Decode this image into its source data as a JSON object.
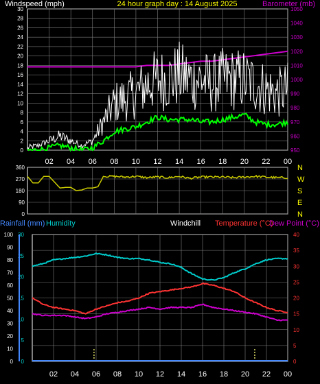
{
  "header": {
    "left": "Windspeed (mph)",
    "center": "24 hour graph day : 14 August 2025",
    "right": "Barometer (mb)"
  },
  "x_ticks": [
    "02",
    "04",
    "06",
    "08",
    "10",
    "12",
    "14",
    "16",
    "18",
    "20",
    "22",
    "00"
  ],
  "colors": {
    "background": "#000000",
    "grid": "#808080",
    "axis": "#ffffff",
    "wind_gust": "#ffffff",
    "wind_avg": "#00ff00",
    "barometer": "#cc00cc",
    "direction": "#cccc00",
    "rain_axis": "#4488ff",
    "humidity": "#00cccc",
    "temperature": "#ff3333",
    "dewpoint": "#cc00cc",
    "dir_labels": "#ffff00",
    "tick_marks": "#dddd66"
  },
  "chart_data": [
    {
      "type": "line",
      "panel": "wind",
      "title": "24 hour graph day : 14 August 2025",
      "ylabel": "Windspeed (mph)",
      "y2label": "Barometer (mb)",
      "ylim": [
        0,
        30
      ],
      "y2lim": [
        950,
        1050
      ],
      "yticks": [
        0,
        2,
        4,
        6,
        8,
        10,
        12,
        14,
        16,
        18,
        20,
        22,
        24,
        26,
        28,
        30
      ],
      "y2ticks": [
        950,
        960,
        970,
        980,
        990,
        1000,
        1010,
        1020,
        1030,
        1040,
        1050
      ],
      "x_hours": [
        0,
        1,
        2,
        3,
        4,
        5,
        6,
        7,
        8,
        9,
        10,
        11,
        12,
        13,
        14,
        15,
        16,
        17,
        18,
        19,
        20,
        21,
        22,
        23,
        24
      ],
      "series": [
        {
          "key": "gust",
          "values": [
            0.5,
            1,
            2,
            3,
            2,
            1,
            2,
            6,
            10,
            11,
            12,
            14,
            15,
            15,
            16,
            15,
            15,
            14,
            15,
            15,
            15,
            14,
            13,
            12,
            13
          ]
        },
        {
          "key": "avg",
          "values": [
            0,
            0,
            0.5,
            1,
            0.5,
            0,
            0.5,
            2,
            4,
            4.5,
            5,
            6,
            7,
            6.5,
            6.5,
            6.5,
            6,
            6,
            6.5,
            7,
            7.5,
            6,
            5.5,
            5.5,
            6
          ]
        },
        {
          "key": "barometer",
          "axis": "y2",
          "values": [
            1009,
            1009,
            1009,
            1009,
            1009,
            1009,
            1009,
            1009,
            1009,
            1009,
            1009,
            1010,
            1010,
            1010,
            1011,
            1012,
            1013,
            1013,
            1014,
            1015,
            1016,
            1017,
            1018,
            1019,
            1020
          ]
        }
      ]
    },
    {
      "type": "line",
      "panel": "direction",
      "ylim": [
        0,
        360
      ],
      "yticks": [
        0,
        90,
        180,
        270,
        360
      ],
      "compass": [
        "N",
        "W",
        "S",
        "E",
        "N"
      ],
      "x_hours": [
        0,
        0.5,
        1,
        1.5,
        2,
        2.5,
        3,
        3.5,
        4,
        4.5,
        5,
        5.5,
        6,
        6.5,
        7,
        8,
        9,
        10,
        11,
        12,
        13,
        14,
        15,
        16,
        17,
        18,
        19,
        20,
        21,
        22,
        23,
        24
      ],
      "values": [
        290,
        240,
        240,
        290,
        290,
        245,
        200,
        205,
        205,
        180,
        185,
        200,
        200,
        210,
        290,
        290,
        285,
        290,
        280,
        285,
        280,
        290,
        275,
        285,
        285,
        285,
        280,
        285,
        290,
        285,
        280,
        280
      ]
    },
    {
      "type": "line",
      "panel": "climate",
      "labels": {
        "rain": "Rainfall (mm)",
        "humidity": "Humidity",
        "windchill": "Windchill",
        "temperature": "Temperature (°C)",
        "dewpoint": "Dew Point (°C)"
      },
      "ylim_humidity": [
        0,
        100
      ],
      "ylim_rain": [
        0,
        30
      ],
      "ylim_temp": [
        0,
        40
      ],
      "yticks_humidity": [
        0,
        10,
        20,
        30,
        40,
        50,
        60,
        70,
        80,
        90,
        100
      ],
      "yticks_rain": [
        0,
        5,
        10,
        15,
        20,
        25,
        30
      ],
      "yticks_temp": [
        0,
        5,
        10,
        15,
        20,
        25,
        30,
        35,
        40
      ],
      "x_hours": [
        0,
        1,
        2,
        3,
        4,
        5,
        6,
        7,
        8,
        9,
        10,
        11,
        12,
        13,
        14,
        15,
        16,
        17,
        18,
        19,
        20,
        21,
        22,
        23,
        24
      ],
      "series": [
        {
          "key": "humidity",
          "values": [
            75,
            77,
            80,
            81,
            82,
            83,
            85,
            84,
            82,
            81,
            81,
            80,
            78,
            77,
            74,
            69,
            65,
            64,
            66,
            70,
            73,
            77,
            80,
            81,
            81
          ]
        },
        {
          "key": "temperature",
          "values": [
            20,
            18,
            17,
            16.5,
            16,
            15,
            16.5,
            17.5,
            18.5,
            19,
            20,
            21.5,
            22,
            22.5,
            23,
            23.5,
            24.5,
            24,
            23,
            22,
            20,
            18.5,
            17,
            16,
            15.5
          ]
        },
        {
          "key": "dewpoint",
          "values": [
            15,
            14.5,
            14.5,
            14.5,
            14,
            13.5,
            14,
            15,
            15.5,
            16,
            16.5,
            17,
            16.5,
            17,
            17,
            17,
            18,
            17,
            16.5,
            16,
            15.5,
            15,
            14,
            13,
            13
          ]
        },
        {
          "key": "rain",
          "values": [
            0,
            0,
            0,
            0,
            0,
            0,
            0,
            0,
            0,
            0,
            0,
            0,
            0,
            0,
            0,
            0,
            0,
            0,
            0,
            0,
            0,
            0,
            0,
            0,
            0
          ]
        }
      ]
    }
  ]
}
